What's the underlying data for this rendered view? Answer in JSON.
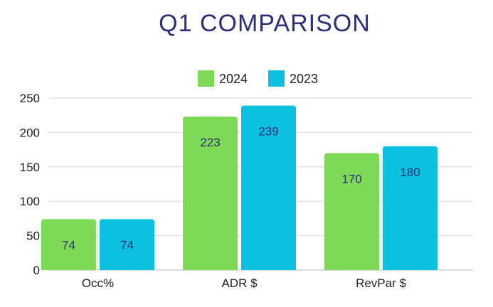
{
  "chart_data": {
    "type": "bar",
    "title": "Q1 COMPARISON",
    "categories": [
      "Occ%",
      "ADR $",
      "RevPar $"
    ],
    "series": [
      {
        "name": "2024",
        "values": [
          74,
          223,
          170
        ],
        "color": "#7ed957"
      },
      {
        "name": "2023",
        "values": [
          74,
          239,
          180
        ],
        "color": "#0cc0df"
      }
    ],
    "ylim": [
      0,
      250
    ],
    "yticks": [
      0,
      50,
      100,
      150,
      200,
      250
    ],
    "xlabel": "",
    "ylabel": "",
    "grid": true,
    "legend": "top-center",
    "label_color": "#2b2f7a",
    "axis_text_color": "#222222",
    "grid_color": "#d9d9d9"
  }
}
